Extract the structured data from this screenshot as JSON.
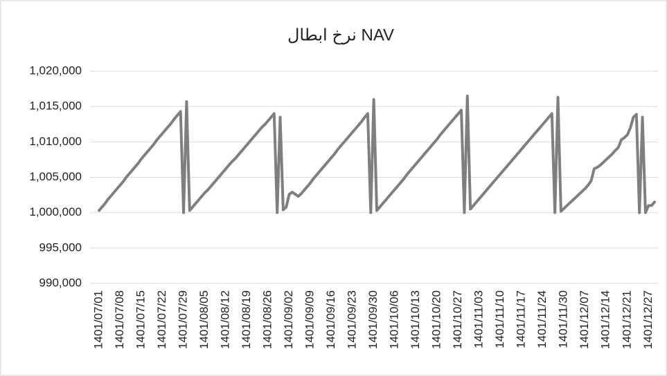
{
  "chart_data": {
    "type": "line",
    "title": "نرخ ابطال NAV",
    "categories": [
      "1401/07/01",
      null,
      null,
      null,
      null,
      null,
      null,
      "1401/07/08",
      null,
      null,
      null,
      null,
      null,
      null,
      "1401/07/15",
      null,
      null,
      null,
      null,
      null,
      null,
      "1401/07/22",
      null,
      null,
      null,
      null,
      null,
      null,
      "1401/07/29",
      null,
      null,
      null,
      null,
      null,
      null,
      "1401/08/05",
      null,
      null,
      null,
      null,
      null,
      null,
      "1401/08/12",
      null,
      null,
      null,
      null,
      null,
      null,
      "1401/08/19",
      null,
      null,
      null,
      null,
      null,
      null,
      "1401/08/26",
      null,
      null,
      null,
      null,
      null,
      null,
      "1401/09/02",
      null,
      null,
      null,
      null,
      null,
      null,
      "1401/09/09",
      null,
      null,
      null,
      null,
      null,
      null,
      "1401/09/16",
      null,
      null,
      null,
      null,
      null,
      null,
      "1401/09/23",
      null,
      null,
      null,
      null,
      null,
      null,
      "1401/09/30",
      null,
      null,
      null,
      null,
      null,
      null,
      "1401/10/06",
      null,
      null,
      null,
      null,
      null,
      null,
      "1401/10/13",
      null,
      null,
      null,
      null,
      null,
      null,
      "1401/10/20",
      null,
      null,
      null,
      null,
      null,
      null,
      "1401/10/27",
      null,
      null,
      null,
      null,
      null,
      null,
      "1401/11/03",
      null,
      null,
      null,
      null,
      null,
      null,
      "1401/11/10",
      null,
      null,
      null,
      null,
      null,
      null,
      "1401/11/17",
      null,
      null,
      null,
      null,
      null,
      null,
      "1401/11/24",
      null,
      null,
      null,
      null,
      null,
      null,
      "1401/11/30",
      null,
      null,
      null,
      null,
      null,
      null,
      "1401/12/07",
      null,
      null,
      null,
      null,
      null,
      null,
      "1401/12/14",
      null,
      null,
      null,
      null,
      null,
      null,
      "1401/12/21",
      null,
      null,
      null,
      null,
      null,
      null,
      "1401/12/27",
      null,
      null
    ],
    "series": [
      {
        "name": "NAV",
        "color": "#7f7f7f",
        "values": [
          1000300,
          1000800,
          1001300,
          1001900,
          1002400,
          1002900,
          1003400,
          1003900,
          1004400,
          1005000,
          1005500,
          1006000,
          1006500,
          1007000,
          1007600,
          1008100,
          1008600,
          1009100,
          1009600,
          1010200,
          1010700,
          1011200,
          1011700,
          1012200,
          1012700,
          1013300,
          1013800,
          1014300,
          1000000,
          1015700,
          1000300,
          1000800,
          1001300,
          1001800,
          1002300,
          1002800,
          1003200,
          1003700,
          1004200,
          1004700,
          1005200,
          1005700,
          1006200,
          1006700,
          1007200,
          1007600,
          1008100,
          1008600,
          1009100,
          1009600,
          1010100,
          1010600,
          1011100,
          1011600,
          1012100,
          1012500,
          1013000,
          1013500,
          1014000,
          1000000,
          1013500,
          1000400,
          1000800,
          1002600,
          1002900,
          1002600,
          1002300,
          1002700,
          1003200,
          1003700,
          1004200,
          1004800,
          1005300,
          1005800,
          1006300,
          1006800,
          1007300,
          1007800,
          1008300,
          1008900,
          1009400,
          1009900,
          1010400,
          1010900,
          1011400,
          1011900,
          1012400,
          1012900,
          1013500,
          1014000,
          1000000,
          1016000,
          1000300,
          1000800,
          1001300,
          1001800,
          1002300,
          1002800,
          1003300,
          1003800,
          1004300,
          1004800,
          1005400,
          1005900,
          1006400,
          1006900,
          1007400,
          1007900,
          1008400,
          1008900,
          1009400,
          1009900,
          1010400,
          1011000,
          1011500,
          1012000,
          1012500,
          1013000,
          1013500,
          1014000,
          1014500,
          1000000,
          1016500,
          1000500,
          1001000,
          1001500,
          1002000,
          1002500,
          1003000,
          1003500,
          1004000,
          1004500,
          1005000,
          1005500,
          1006000,
          1006500,
          1007000,
          1007500,
          1008000,
          1008500,
          1009000,
          1009500,
          1010000,
          1010500,
          1011000,
          1011500,
          1012000,
          1012500,
          1013000,
          1013500,
          1014000,
          1000000,
          1016300,
          1000200,
          1000600,
          1001000,
          1001400,
          1001800,
          1002200,
          1002600,
          1003000,
          1003400,
          1003900,
          1004500,
          1006200,
          1006400,
          1006700,
          1007100,
          1007500,
          1007900,
          1008300,
          1008800,
          1009200,
          1010300,
          1010600,
          1011000,
          1012000,
          1013500,
          1013900,
          1000000,
          1013500,
          1000000,
          1001000,
          1001000,
          1001500
        ]
      }
    ],
    "ylim": [
      990000,
      1020000
    ],
    "yticks": [
      {
        "value": 990000,
        "label": "990,000"
      },
      {
        "value": 995000,
        "label": "995,000"
      },
      {
        "value": 1000000,
        "label": "1,000,000"
      },
      {
        "value": 1005000,
        "label": "1,005,000"
      },
      {
        "value": 1010000,
        "label": "1,010,000"
      },
      {
        "value": 1015000,
        "label": "1,015,000"
      },
      {
        "value": 1020000,
        "label": "1,020,000"
      }
    ],
    "grid": true
  }
}
